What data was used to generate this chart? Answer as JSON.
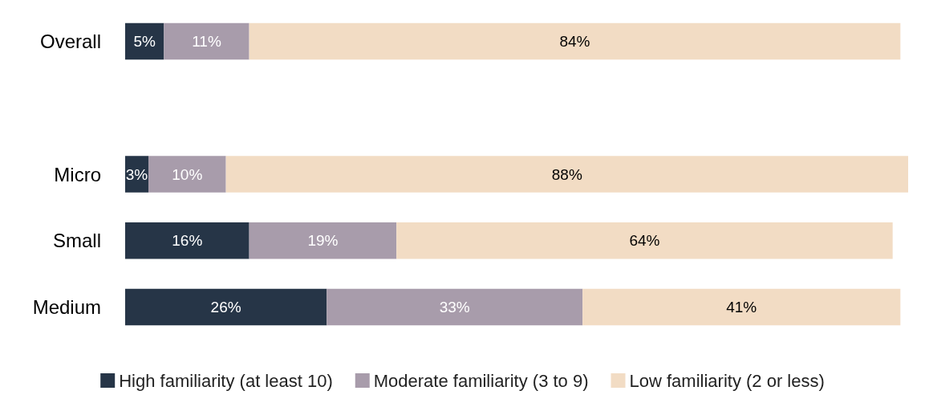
{
  "chart_data": {
    "type": "bar",
    "orientation": "horizontal",
    "stacked": true,
    "categories": [
      "Overall",
      null,
      "Micro",
      "Small",
      "Medium"
    ],
    "legend": "bottom",
    "series": [
      {
        "name": "High familiarity (at least 10)",
        "color": "#263547",
        "values": [
          5,
          null,
          3,
          16,
          26
        ],
        "value_labels": [
          "5%",
          null,
          "3%",
          "16%",
          "26%"
        ]
      },
      {
        "name": "Moderate familiarity (3 to 9)",
        "color": "#a89cab",
        "values": [
          11,
          null,
          10,
          19,
          33
        ],
        "value_labels": [
          "11%",
          null,
          "10%",
          "19%",
          "33%"
        ]
      },
      {
        "name": "Low familiarity (2 or less)",
        "color": "#f2dcc4",
        "values": [
          84,
          null,
          88,
          64,
          41
        ],
        "value_labels": [
          "84%",
          null,
          "88%",
          "64%",
          "41%"
        ]
      }
    ]
  }
}
